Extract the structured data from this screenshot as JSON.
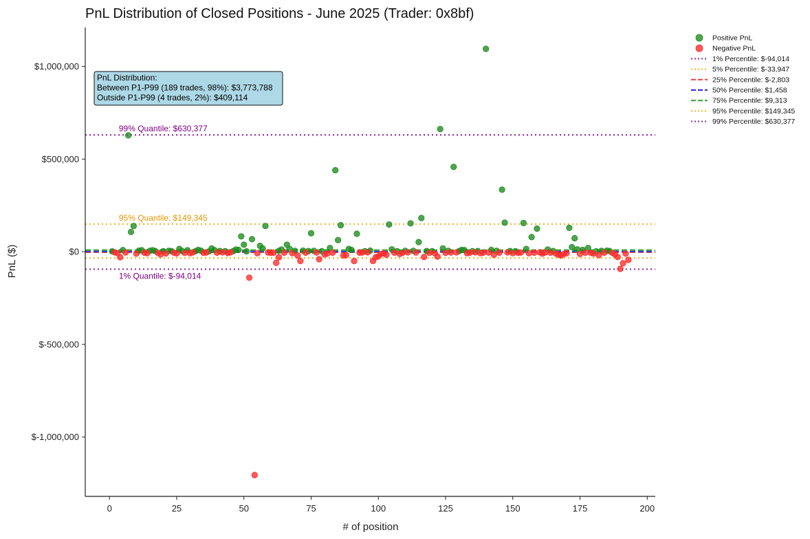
{
  "chart_data": {
    "type": "scatter",
    "title": "PnL Distribution of Closed Positions - June 2025 (Trader: 0x8bf)",
    "xlabel": "# of position",
    "ylabel": "PnL ($)",
    "xlim": [
      -9,
      203
    ],
    "ylim": [
      -1320000,
      1210000
    ],
    "x_ticks": [
      0,
      25,
      50,
      75,
      100,
      125,
      150,
      175,
      200
    ],
    "y_ticks": [
      {
        "value": 1000000,
        "label": "$1,000,000"
      },
      {
        "value": 500000,
        "label": "$500,000"
      },
      {
        "value": 0,
        "label": "$0"
      },
      {
        "value": -500000,
        "label": "$-500,000"
      },
      {
        "value": -1000000,
        "label": "$-1,000,000"
      }
    ],
    "grid": false,
    "legend_position": "outside-right",
    "colors": {
      "positive": "#1e8c1e",
      "negative": "#ff2a2a"
    },
    "series": [
      {
        "name": "Positive PnL",
        "color": "#1e8c1e",
        "points": [
          [
            1,
            2000
          ],
          [
            5,
            9000
          ],
          [
            7,
            628000
          ],
          [
            8,
            107000
          ],
          [
            9,
            139000
          ],
          [
            11,
            6000
          ],
          [
            12,
            8000
          ],
          [
            15,
            5000
          ],
          [
            16,
            8000
          ],
          [
            17,
            4000
          ],
          [
            20,
            3000
          ],
          [
            22,
            5000
          ],
          [
            23,
            4000
          ],
          [
            26,
            15000
          ],
          [
            27,
            4000
          ],
          [
            29,
            8000
          ],
          [
            32,
            3000
          ],
          [
            33,
            10000
          ],
          [
            34,
            6000
          ],
          [
            37,
            2000
          ],
          [
            38,
            18000
          ],
          [
            39,
            9000
          ],
          [
            41,
            4000
          ],
          [
            43,
            3000
          ],
          [
            46,
            3000
          ],
          [
            47,
            12000
          ],
          [
            48,
            10000
          ],
          [
            49,
            83000
          ],
          [
            50,
            38000
          ],
          [
            51,
            2000
          ],
          [
            53,
            68000
          ],
          [
            56,
            32000
          ],
          [
            57,
            18000
          ],
          [
            58,
            139000
          ],
          [
            63,
            5000
          ],
          [
            64,
            12000
          ],
          [
            66,
            38000
          ],
          [
            67,
            15000
          ],
          [
            69,
            5000
          ],
          [
            72,
            6000
          ],
          [
            74,
            4000
          ],
          [
            75,
            100000
          ],
          [
            76,
            5000
          ],
          [
            79,
            3000
          ],
          [
            82,
            20000
          ],
          [
            84,
            440000
          ],
          [
            85,
            63000
          ],
          [
            86,
            143000
          ],
          [
            89,
            15000
          ],
          [
            90,
            10000
          ],
          [
            92,
            97000
          ],
          [
            95,
            3000
          ],
          [
            97,
            6000
          ],
          [
            104,
            147000
          ],
          [
            105,
            13000
          ],
          [
            107,
            3000
          ],
          [
            110,
            5000
          ],
          [
            112,
            153000
          ],
          [
            113,
            5000
          ],
          [
            115,
            52000
          ],
          [
            116,
            182000
          ],
          [
            118,
            4000
          ],
          [
            120,
            3000
          ],
          [
            123,
            662000
          ],
          [
            124,
            18000
          ],
          [
            126,
            5000
          ],
          [
            128,
            458000
          ],
          [
            130,
            3000
          ],
          [
            131,
            10000
          ],
          [
            132,
            9000
          ],
          [
            135,
            3000
          ],
          [
            137,
            4000
          ],
          [
            140,
            1095000
          ],
          [
            142,
            10000
          ],
          [
            144,
            5000
          ],
          [
            146,
            335000
          ],
          [
            147,
            157000
          ],
          [
            149,
            4000
          ],
          [
            151,
            3000
          ],
          [
            154,
            155000
          ],
          [
            155,
            15000
          ],
          [
            157,
            79000
          ],
          [
            159,
            125000
          ],
          [
            163,
            12000
          ],
          [
            165,
            4000
          ],
          [
            171,
            129000
          ],
          [
            172,
            25000
          ],
          [
            173,
            73000
          ],
          [
            174,
            13000
          ],
          [
            176,
            10000
          ],
          [
            178,
            20000
          ],
          [
            181,
            2000
          ],
          [
            183,
            5000
          ],
          [
            185,
            6000
          ],
          [
            186,
            4000
          ]
        ]
      },
      {
        "name": "Negative PnL",
        "color": "#ff2a2a",
        "points": [
          [
            2,
            -3000
          ],
          [
            3,
            -8000
          ],
          [
            4,
            -30000
          ],
          [
            6,
            -4000
          ],
          [
            10,
            -10000
          ],
          [
            13,
            -5000
          ],
          [
            14,
            -8000
          ],
          [
            18,
            -6000
          ],
          [
            19,
            -14000
          ],
          [
            21,
            -9000
          ],
          [
            24,
            -5000
          ],
          [
            25,
            -9000
          ],
          [
            28,
            -6000
          ],
          [
            30,
            -8000
          ],
          [
            31,
            -3000
          ],
          [
            35,
            -6000
          ],
          [
            36,
            -4000
          ],
          [
            40,
            -5000
          ],
          [
            42,
            -3000
          ],
          [
            44,
            -7000
          ],
          [
            45,
            -3000
          ],
          [
            52,
            -140000
          ],
          [
            54,
            -1205000
          ],
          [
            55,
            -8000
          ],
          [
            59,
            -4000
          ],
          [
            60,
            -6000
          ],
          [
            61,
            -5000
          ],
          [
            62,
            -60000
          ],
          [
            63,
            -30000
          ],
          [
            65,
            -5000
          ],
          [
            68,
            -8000
          ],
          [
            70,
            -20000
          ],
          [
            71,
            -50000
          ],
          [
            73,
            -5000
          ],
          [
            77,
            -4000
          ],
          [
            78,
            -40000
          ],
          [
            80,
            -14000
          ],
          [
            81,
            -10000
          ],
          [
            83,
            -5000
          ],
          [
            87,
            -20000
          ],
          [
            88,
            -18000
          ],
          [
            91,
            -50000
          ],
          [
            93,
            -5000
          ],
          [
            94,
            -4000
          ],
          [
            96,
            -3000
          ],
          [
            98,
            -50000
          ],
          [
            99,
            -30000
          ],
          [
            100,
            -25000
          ],
          [
            101,
            -12000
          ],
          [
            102,
            -8000
          ],
          [
            103,
            -16000
          ],
          [
            106,
            -5000
          ],
          [
            108,
            -12000
          ],
          [
            109,
            -6000
          ],
          [
            111,
            -3000
          ],
          [
            114,
            -4000
          ],
          [
            117,
            -28000
          ],
          [
            119,
            -6000
          ],
          [
            121,
            -8000
          ],
          [
            122,
            -26000
          ],
          [
            125,
            -6000
          ],
          [
            127,
            -4000
          ],
          [
            129,
            -3000
          ],
          [
            133,
            -8000
          ],
          [
            134,
            -5000
          ],
          [
            136,
            -3000
          ],
          [
            138,
            -8000
          ],
          [
            139,
            -5000
          ],
          [
            141,
            -4000
          ],
          [
            143,
            -16000
          ],
          [
            145,
            -5000
          ],
          [
            148,
            -3000
          ],
          [
            150,
            -8000
          ],
          [
            152,
            -6000
          ],
          [
            153,
            -4000
          ],
          [
            156,
            -8000
          ],
          [
            158,
            -5000
          ],
          [
            160,
            -3000
          ],
          [
            161,
            -10000
          ],
          [
            162,
            -4000
          ],
          [
            164,
            -5000
          ],
          [
            166,
            -10000
          ],
          [
            167,
            -16000
          ],
          [
            168,
            -20000
          ],
          [
            169,
            -12000
          ],
          [
            170,
            -8000
          ],
          [
            175,
            -12000
          ],
          [
            177,
            -5000
          ],
          [
            179,
            -6000
          ],
          [
            180,
            -10000
          ],
          [
            182,
            -18000
          ],
          [
            184,
            -5000
          ],
          [
            187,
            -6000
          ],
          [
            188,
            -14000
          ],
          [
            189,
            -28000
          ],
          [
            190,
            -92000
          ],
          [
            191,
            -62000
          ],
          [
            192,
            -10000
          ],
          [
            193,
            -44000
          ]
        ]
      }
    ],
    "percentiles": [
      {
        "legend": "1% Percentile: $-94,014",
        "value": -94014,
        "color": "#9b3fa8",
        "style": "dotted",
        "label": "1% Quantile: $-94,014",
        "label_color": "#800080"
      },
      {
        "legend": "5% Percentile: $-33,947",
        "value": -33947,
        "color": "#f5b83a",
        "style": "dotted",
        "label": "",
        "label_color": ""
      },
      {
        "legend": "25% Percentile: $-2,803",
        "value": -2803,
        "color": "#f04848",
        "style": "dashed",
        "label": "",
        "label_color": ""
      },
      {
        "legend": "50% Percentile: $1,458",
        "value": 1458,
        "color": "#3434e0",
        "style": "dashed",
        "label": "",
        "label_color": ""
      },
      {
        "legend": "75% Percentile: $9,313",
        "value": 9313,
        "color": "#3aa63a",
        "style": "dashed",
        "label": "",
        "label_color": ""
      },
      {
        "legend": "95% Percentile: $149,345",
        "value": 149345,
        "color": "#f5b83a",
        "style": "dotted",
        "label": "95% Quantile: $149,345",
        "label_color": "#e69500"
      },
      {
        "legend": "99% Percentile: $630,377",
        "value": 630377,
        "color": "#9b3fa8",
        "style": "dotted",
        "label": "99% Quantile: $630,377",
        "label_color": "#800080"
      }
    ],
    "annotation": {
      "lines": [
        "PnL Distribution:",
        "Between P1-P99 (189 trades, 98%): $3,773,788",
        "Outside P1-P99 (4 trades, 2%): $409,114"
      ],
      "background": "#add8e6"
    }
  }
}
